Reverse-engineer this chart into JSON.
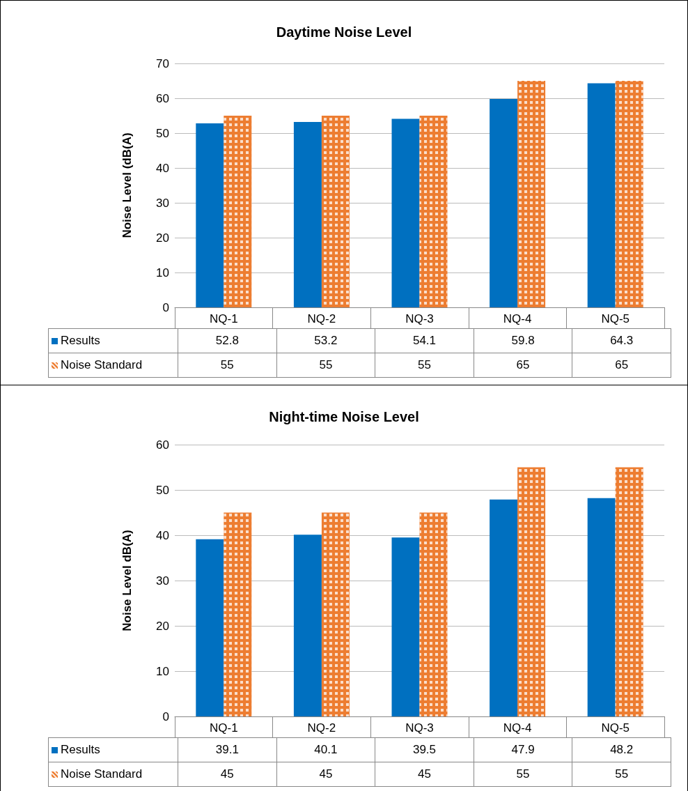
{
  "chart_data": [
    {
      "type": "bar",
      "title": "Daytime Noise Level",
      "ylabel": "Noise Level (dB(A)",
      "categories": [
        "NQ-1",
        "NQ-2",
        "NQ-3",
        "NQ-4",
        "NQ-5"
      ],
      "series": [
        {
          "name": "Results",
          "color": "#0070c0",
          "values": [
            52.8,
            53.2,
            54.1,
            59.8,
            64.3
          ]
        },
        {
          "name": "Noise Standard",
          "color": "#ed7d31",
          "values": [
            55,
            55,
            55,
            65,
            65
          ]
        }
      ],
      "ylim": [
        0,
        70
      ],
      "yticks": [
        0,
        10,
        20,
        30,
        40,
        50,
        60,
        70
      ],
      "grid": "y",
      "legend": "bottom",
      "data_labels": true
    },
    {
      "type": "bar",
      "title": "Night-time Noise Level",
      "ylabel": "Noise Level dB(A)",
      "categories": [
        "NQ-1",
        "NQ-2",
        "NQ-3",
        "NQ-4",
        "NQ-5"
      ],
      "series": [
        {
          "name": "Results",
          "color": "#0070c0",
          "values": [
            39.1,
            40.1,
            39.5,
            47.9,
            48.2
          ]
        },
        {
          "name": "Noise Standard",
          "color": "#ed7d31",
          "values": [
            45,
            45,
            45,
            55,
            55
          ]
        }
      ],
      "ylim": [
        0,
        60
      ],
      "yticks": [
        0,
        10,
        20,
        30,
        40,
        50,
        60
      ],
      "grid": "y",
      "legend": "bottom",
      "data_labels": true
    }
  ]
}
